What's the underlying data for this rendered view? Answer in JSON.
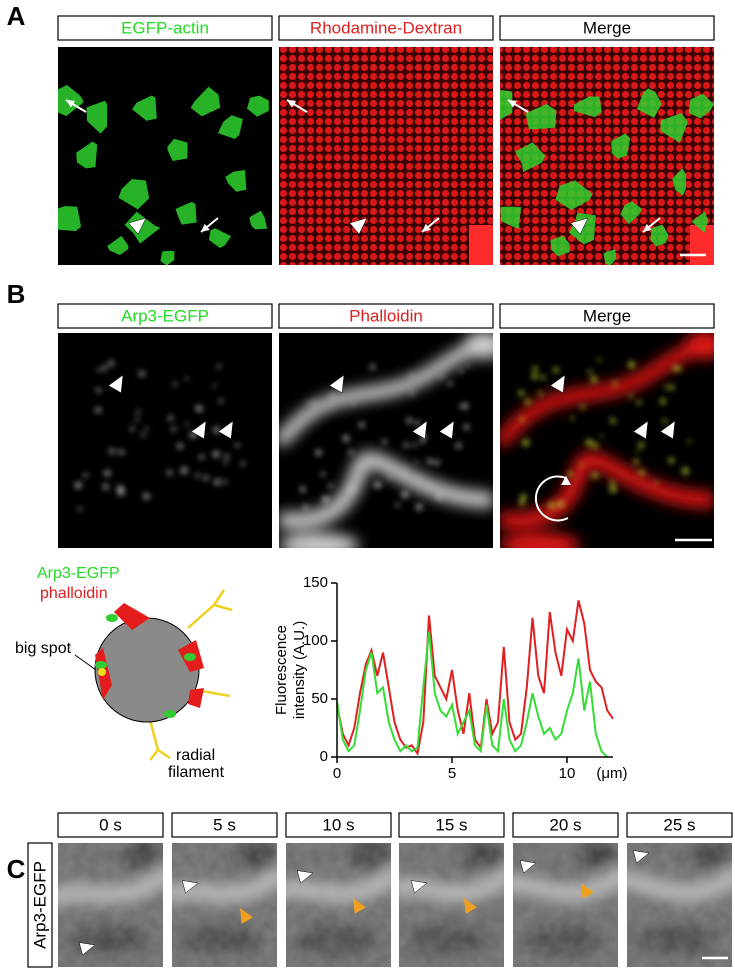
{
  "panel_labels": [
    "A",
    "B",
    "C"
  ],
  "panel_a": {
    "headers": [
      "EGFP-actin",
      "Rhodamine-Dextran",
      "Merge"
    ]
  },
  "panel_b": {
    "headers": [
      "Arp3-EGFP",
      "Phalloidin",
      "Merge"
    ],
    "diagram": {
      "legend": [
        "Arp3-EGFP",
        "phalloidin"
      ],
      "big_spot": "big spot",
      "radial_filament": [
        "radial",
        "filament"
      ]
    },
    "plot": {
      "type": "line",
      "y_label": [
        "Fluorescence",
        "intensity (A.U.)"
      ],
      "x_unit": "(μm)",
      "xlim": [
        0,
        12
      ],
      "ylim": [
        0,
        150
      ],
      "xticks": [
        0,
        5,
        10
      ],
      "yticks": [
        0,
        50,
        100,
        150
      ],
      "x": [
        0,
        0.25,
        0.5,
        0.75,
        1,
        1.25,
        1.5,
        1.75,
        2,
        2.25,
        2.5,
        2.75,
        3,
        3.25,
        3.5,
        3.75,
        4,
        4.25,
        4.5,
        4.75,
        5,
        5.25,
        5.5,
        5.75,
        6,
        6.25,
        6.5,
        6.75,
        7,
        7.25,
        7.5,
        7.75,
        8,
        8.25,
        8.5,
        8.75,
        9,
        9.25,
        9.5,
        9.75,
        10,
        10.25,
        10.5,
        10.75,
        11,
        11.25,
        11.5,
        11.75,
        12
      ],
      "series": [
        {
          "color": "#e02020",
          "values": [
            45,
            20,
            10,
            25,
            55,
            80,
            92,
            70,
            90,
            60,
            30,
            15,
            8,
            10,
            3,
            30,
            122,
            70,
            60,
            50,
            75,
            40,
            20,
            55,
            15,
            8,
            50,
            20,
            30,
            95,
            30,
            15,
            20,
            60,
            120,
            70,
            55,
            125,
            90,
            70,
            110,
            100,
            135,
            115,
            75,
            65,
            60,
            40,
            33
          ]
        },
        {
          "color": "#33dd33",
          "values": [
            48,
            15,
            5,
            10,
            40,
            75,
            90,
            55,
            60,
            30,
            15,
            5,
            10,
            5,
            8,
            60,
            108,
            55,
            40,
            35,
            45,
            20,
            30,
            40,
            10,
            5,
            45,
            10,
            5,
            50,
            15,
            5,
            10,
            30,
            55,
            35,
            20,
            25,
            15,
            20,
            40,
            55,
            85,
            40,
            65,
            20,
            5,
            0,
            null
          ]
        }
      ]
    }
  },
  "panel_c": {
    "headers": [
      "0 s",
      "5 s",
      "10 s",
      "15 s",
      "20 s",
      "25 s"
    ],
    "side_label": "Arp3-EGFP"
  }
}
